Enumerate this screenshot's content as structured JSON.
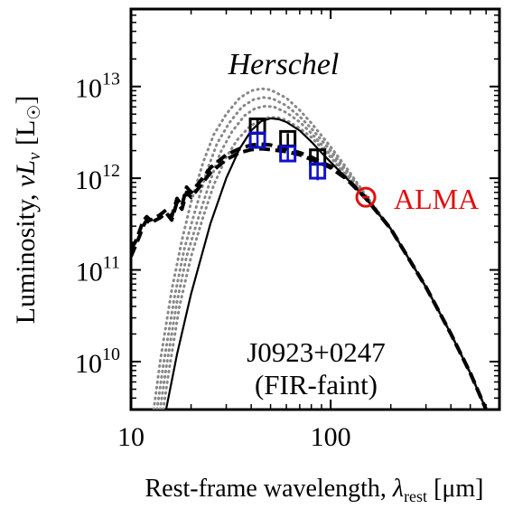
{
  "chart_data": {
    "type": "line",
    "xlabel_prefix": "Rest-frame wavelength, ",
    "xlabel_symbol": "λ",
    "xlabel_sub": "rest",
    "xlabel_unit": " [μm]",
    "ylabel_prefix": "Luminosity, ",
    "ylabel_symbol": "νL",
    "ylabel_sub": "ν",
    "ylabel_unit_open": " [L",
    "ylabel_unit_close": "]",
    "x_scale": "log",
    "y_scale": "log",
    "xlim": [
      10,
      700
    ],
    "ylim": [
      3000000000.0,
      70000000000000.0
    ],
    "x_ticks": [
      {
        "value": 10,
        "label": "10"
      },
      {
        "value": 100,
        "label": "100"
      }
    ],
    "y_ticks": [
      {
        "value": 10000000000.0,
        "base": "10",
        "exp": "10"
      },
      {
        "value": 100000000000.0,
        "base": "10",
        "exp": "11"
      },
      {
        "value": 1000000000000.0,
        "base": "10",
        "exp": "12"
      },
      {
        "value": 10000000000000.0,
        "base": "10",
        "exp": "13"
      }
    ],
    "annotations": {
      "herschel": "Herschel",
      "alma": "ALMA",
      "source_name": "J0923+0247",
      "source_note": "(FIR-faint)"
    },
    "colors": {
      "herschel_black": "#000000",
      "herschel_blue": "#1010cc",
      "alma": "#e01010",
      "model_dotted": "#888888",
      "model_solid": "#000000",
      "model_dashed": "#000000"
    },
    "series": [
      {
        "style": "solid",
        "x": [
          15,
          17,
          20,
          25,
          30,
          35,
          40,
          45,
          50,
          55,
          60,
          70,
          80,
          90,
          100,
          120,
          150,
          200,
          300,
          400,
          500,
          600
        ],
        "y": [
          3000000000.0,
          12000000000.0,
          55000000000.0,
          320000000000.0,
          1000000000000.0,
          2100000000000.0,
          3300000000000.0,
          4200000000000.0,
          4500000000000.0,
          4400000000000.0,
          4100000000000.0,
          3300000000000.0,
          2500000000000.0,
          1900000000000.0,
          1500000000000.0,
          1000000000000.0,
          600000000000.0,
          280000000000.0,
          65000000000.0,
          20000000000.0,
          7500000000.0,
          3000000000.0
        ]
      },
      {
        "style": "dotted",
        "x": [
          13,
          14,
          16,
          18,
          20,
          23,
          26,
          30,
          35,
          40,
          45,
          50,
          60,
          70,
          80,
          100,
          120,
          150,
          200,
          300,
          400,
          500,
          600
        ],
        "y": [
          3000000000.0,
          10000000000.0,
          60000000000.0,
          210000000000.0,
          550000000000.0,
          1500000000000.0,
          3000000000000.0,
          5000000000000.0,
          7500000000000.0,
          9000000000000.0,
          9500000000000.0,
          9200000000000.0,
          7500000000000.0,
          5500000000000.0,
          4000000000000.0,
          2200000000000.0,
          1300000000000.0,
          650000000000.0,
          280000000000.0,
          65000000000.0,
          20000000000.0,
          7500000000.0,
          3000000000.0
        ]
      },
      {
        "style": "dotted",
        "x": [
          13.5,
          14.5,
          16.5,
          18.5,
          21,
          24,
          27,
          31,
          36,
          41,
          46,
          51,
          60,
          70,
          80,
          100,
          120,
          150,
          200,
          300,
          400,
          500,
          600
        ],
        "y": [
          3000000000.0,
          9000000000.0,
          50000000000.0,
          170000000000.0,
          450000000000.0,
          1200000000000.0,
          2400000000000.0,
          4000000000000.0,
          6000000000000.0,
          7200000000000.0,
          7600000000000.0,
          7400000000000.0,
          6200000000000.0,
          4700000000000.0,
          3500000000000.0,
          2000000000000.0,
          1200000000000.0,
          630000000000.0,
          280000000000.0,
          65000000000.0,
          20000000000.0,
          7500000000.0,
          3000000000.0
        ]
      },
      {
        "style": "dotted",
        "x": [
          14,
          15,
          17,
          19,
          22,
          25,
          28,
          32,
          37,
          42,
          47,
          52,
          60,
          70,
          80,
          100,
          120,
          150,
          200,
          300,
          400,
          500,
          600
        ],
        "y": [
          3000000000.0,
          8500000000.0,
          45000000000.0,
          140000000000.0,
          400000000000.0,
          950000000000.0,
          1900000000000.0,
          3200000000000.0,
          4800000000000.0,
          5800000000000.0,
          6100000000000.0,
          6000000000000.0,
          5200000000000.0,
          4100000000000.0,
          3100000000000.0,
          1800000000000.0,
          1100000000000.0,
          610000000000.0,
          280000000000.0,
          65000000000.0,
          20000000000.0,
          7500000000.0,
          3000000000.0
        ]
      },
      {
        "style": "dotted",
        "x": [
          14.5,
          15.5,
          17.5,
          20,
          23,
          26,
          30,
          34,
          39,
          44,
          49,
          54,
          60,
          70,
          80,
          100,
          120,
          150,
          200,
          300,
          400,
          500,
          600
        ],
        "y": [
          3000000000.0,
          8000000000.0,
          40000000000.0,
          140000000000.0,
          380000000000.0,
          850000000000.0,
          1700000000000.0,
          2600000000000.0,
          3600000000000.0,
          4300000000000.0,
          4600000000000.0,
          4600000000000.0,
          4300000000000.0,
          3500000000000.0,
          2800000000000.0,
          1700000000000.0,
          1050000000000.0,
          600000000000.0,
          280000000000.0,
          65000000000.0,
          20000000000.0,
          7500000000.0,
          3000000000.0
        ]
      },
      {
        "style": "dashed",
        "x": [
          10,
          10.5,
          11,
          11.5,
          12,
          12.5,
          13,
          14,
          15,
          16,
          17,
          18,
          19,
          20,
          22,
          25,
          30,
          35,
          40,
          45,
          50,
          60,
          70,
          80,
          90,
          100,
          120,
          150,
          200,
          300,
          400,
          500,
          600
        ],
        "y": [
          170000000000.0,
          200000000000.0,
          260000000000.0,
          340000000000.0,
          380000000000.0,
          350000000000.0,
          360000000000.0,
          400000000000.0,
          450000000000.0,
          380000000000.0,
          600000000000.0,
          500000000000.0,
          800000000000.0,
          700000000000.0,
          900000000000.0,
          1300000000000.0,
          1800000000000.0,
          2100000000000.0,
          2300000000000.0,
          2350000000000.0,
          2300000000000.0,
          2100000000000.0,
          1900000000000.0,
          1700000000000.0,
          1500000000000.0,
          1350000000000.0,
          1000000000000.0,
          610000000000.0,
          280000000000.0,
          65000000000.0,
          20000000000.0,
          7500000000.0,
          3000000000.0
        ]
      },
      {
        "style": "dashed",
        "x": [
          10,
          10.5,
          11,
          11.5,
          12,
          12.5,
          13,
          14,
          15,
          16,
          17,
          18,
          19,
          20,
          22,
          25,
          30,
          35,
          40,
          45,
          50,
          60,
          70,
          80,
          90,
          100,
          120,
          150,
          200,
          300,
          400,
          500,
          600
        ],
        "y": [
          140000000000.0,
          180000000000.0,
          230000000000.0,
          300000000000.0,
          350000000000.0,
          320000000000.0,
          340000000000.0,
          370000000000.0,
          420000000000.0,
          350000000000.0,
          550000000000.0,
          460000000000.0,
          700000000000.0,
          620000000000.0,
          800000000000.0,
          1150000000000.0,
          1600000000000.0,
          1900000000000.0,
          2050000000000.0,
          2100000000000.0,
          2050000000000.0,
          1950000000000.0,
          1800000000000.0,
          1600000000000.0,
          1450000000000.0,
          1300000000000.0,
          980000000000.0,
          600000000000.0,
          280000000000.0,
          65000000000.0,
          20000000000.0,
          7500000000.0,
          3000000000.0
        ]
      }
    ],
    "herschel_black": [
      {
        "x": 43,
        "y": 3700000000000.0,
        "yerr": [
          3100000000000.0,
          4400000000000.0
        ]
      },
      {
        "x": 61,
        "y": 2700000000000.0,
        "yerr": [
          2300000000000.0,
          3100000000000.0
        ]
      },
      {
        "x": 86,
        "y": 1700000000000.0,
        "yerr": [
          1400000000000.0,
          2000000000000.0
        ]
      }
    ],
    "herschel_blue": [
      {
        "x": 43,
        "y": 2600000000000.0,
        "yerr": [
          2100000000000.0,
          3200000000000.0
        ]
      },
      {
        "x": 61,
        "y": 1850000000000.0,
        "yerr": [
          1500000000000.0,
          2300000000000.0
        ]
      },
      {
        "x": 86,
        "y": 1200000000000.0,
        "yerr": [
          950000000000.0,
          1500000000000.0
        ]
      }
    ],
    "alma_point": {
      "x": 150,
      "y": 620000000000.0
    }
  }
}
